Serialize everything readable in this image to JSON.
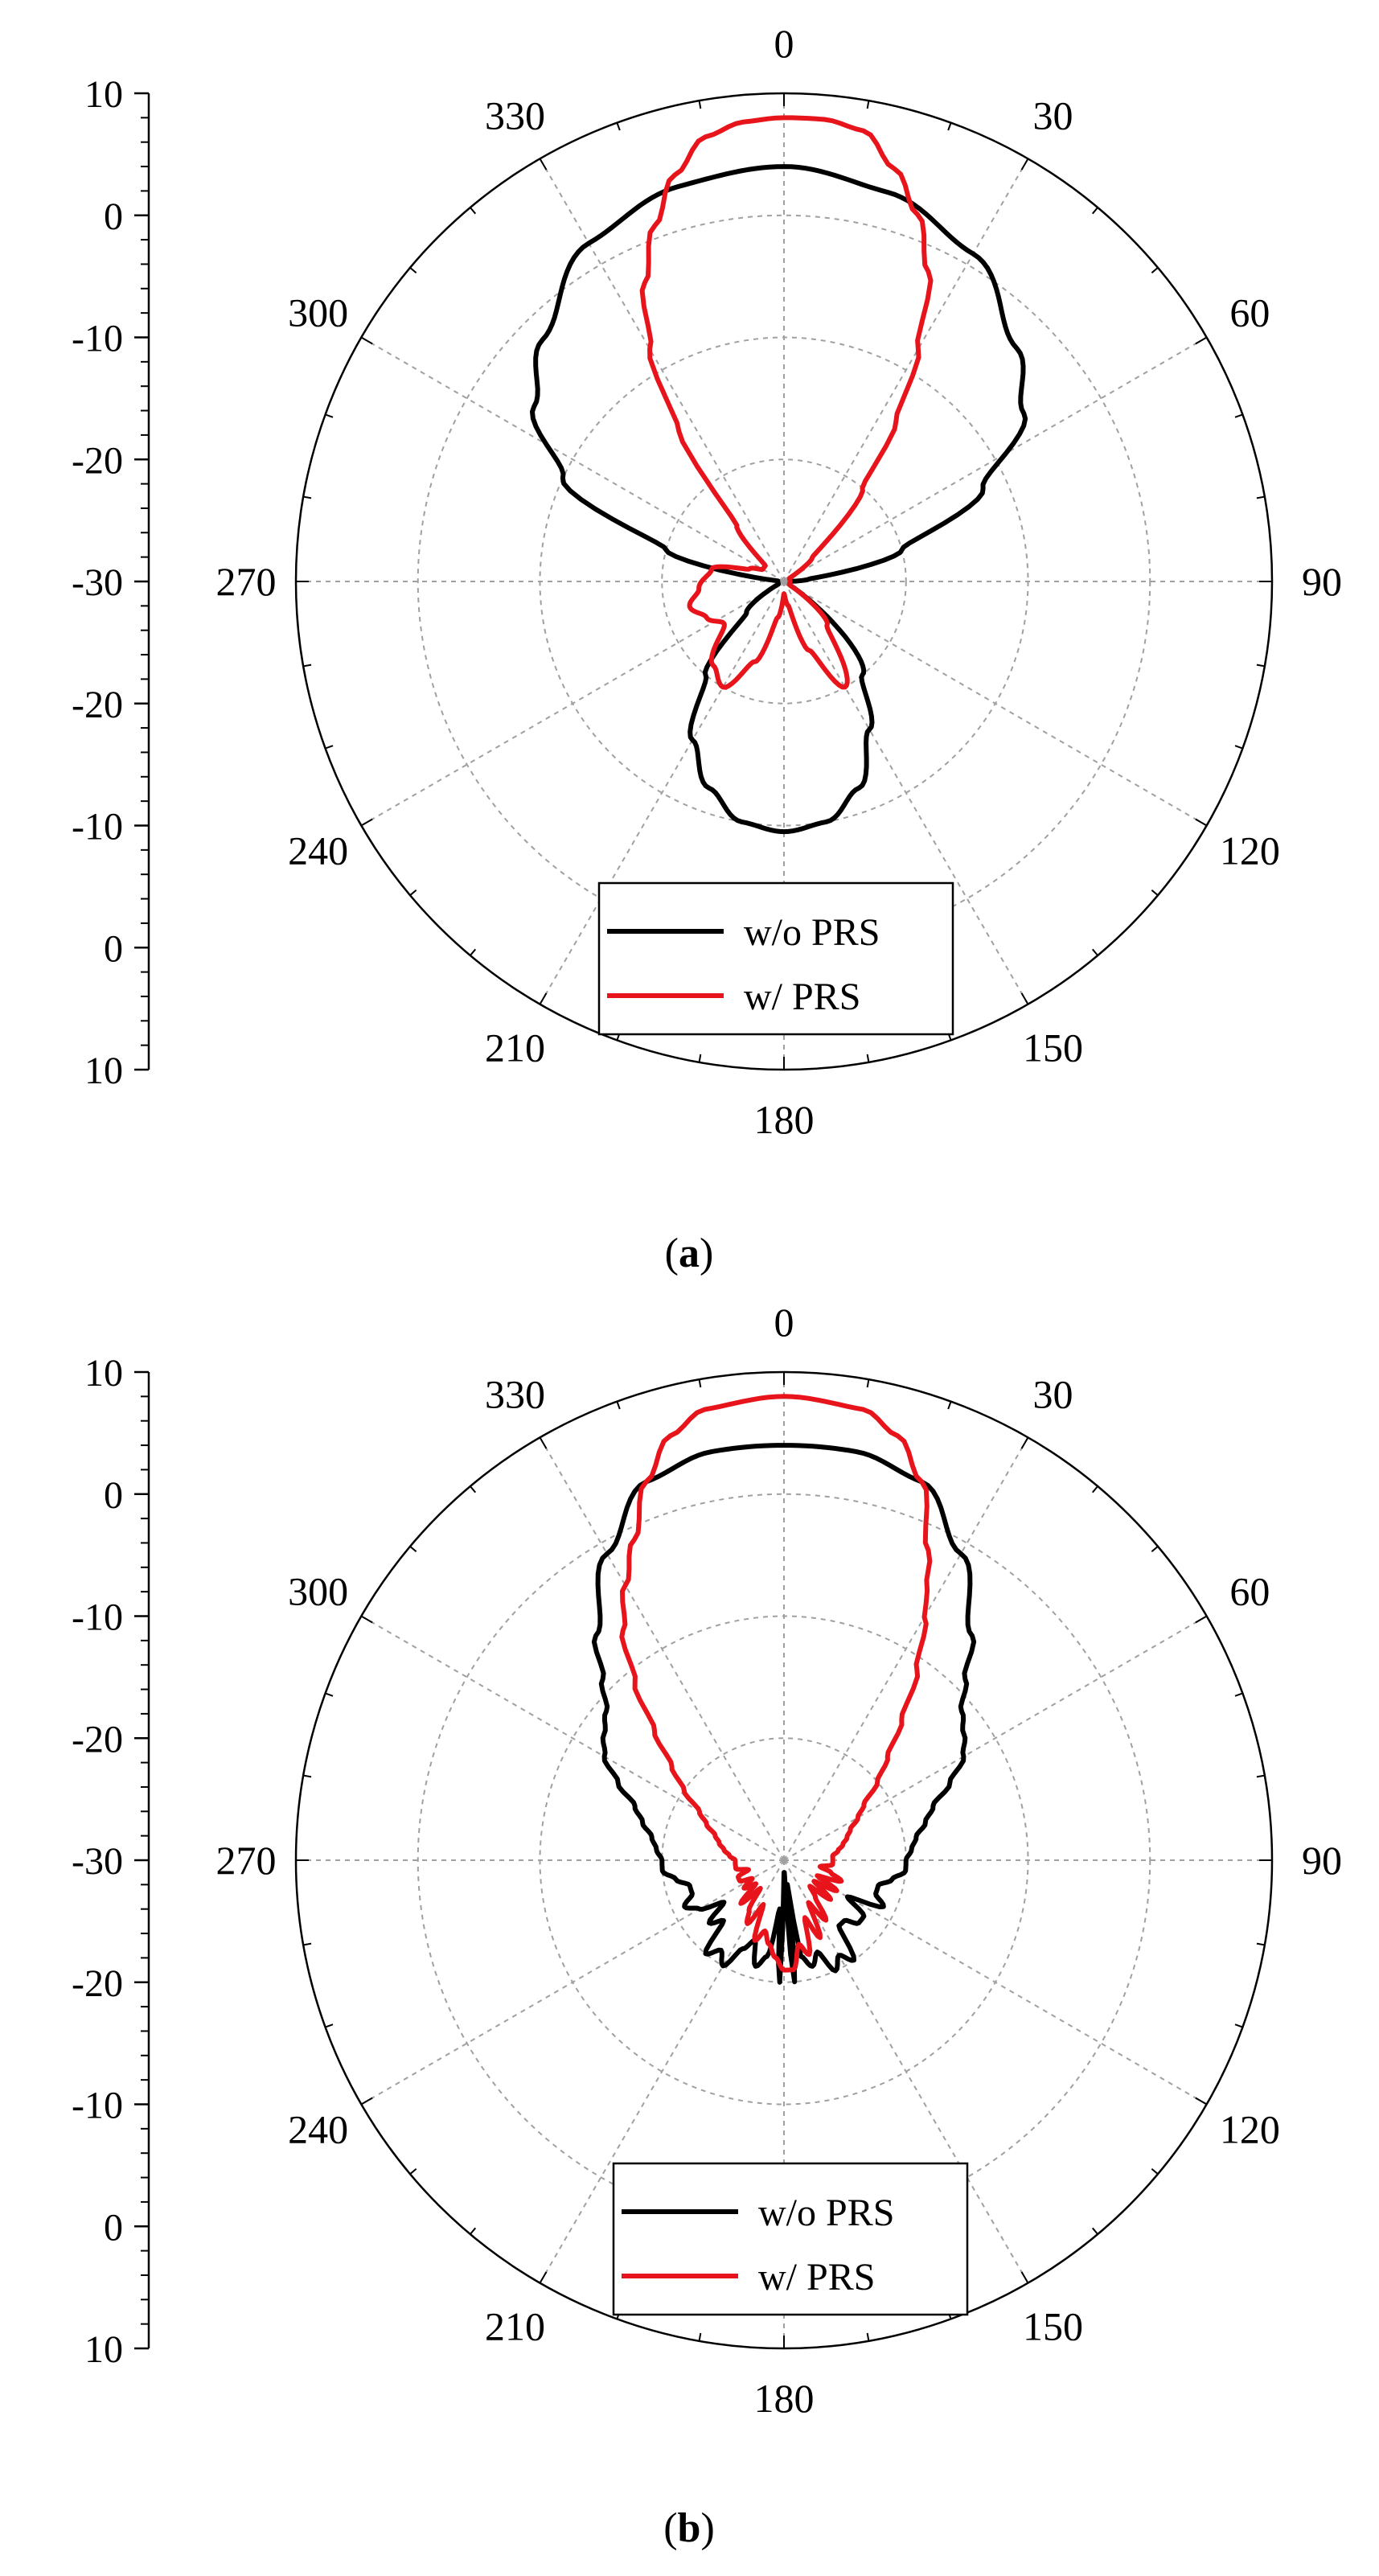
{
  "colors": {
    "series_without_prs": "#000000",
    "series_with_prs": "#e8141b",
    "grid": "#a0a0a0",
    "axis": "#000000"
  },
  "chart_data": [
    {
      "type": "polar-line",
      "caption_letter": "a",
      "radial_range_db": [
        -30,
        10
      ],
      "radial_tick_labels": [
        "10",
        "0",
        "-10",
        "-20",
        "-30",
        "-20",
        "-10",
        "0",
        "10"
      ],
      "angle_labels": [
        "0",
        "30",
        "60",
        "90",
        "120",
        "150",
        "180",
        "210",
        "240",
        "270",
        "300",
        "330"
      ],
      "angle_unit": "deg",
      "grid": true,
      "legend_position": "bottom-center",
      "series": [
        {
          "name": "w/o PRS",
          "color": "#000000",
          "points": [
            [
              0,
              4
            ],
            [
              15,
              3
            ],
            [
              30,
              1
            ],
            [
              45,
              -3
            ],
            [
              55,
              -6
            ],
            [
              65,
              -12
            ],
            [
              75,
              -20
            ],
            [
              85,
              -28
            ],
            [
              90,
              -29.5
            ],
            [
              100,
              -29.5
            ],
            [
              120,
              -29.5
            ],
            [
              140,
              -20
            ],
            [
              150,
              -16
            ],
            [
              160,
              -12
            ],
            [
              170,
              -10
            ],
            [
              180,
              -9.5
            ],
            [
              190,
              -10
            ],
            [
              200,
              -12
            ],
            [
              210,
              -15
            ],
            [
              220,
              -20
            ],
            [
              230,
              -26
            ],
            [
              245,
              -29.5
            ],
            [
              260,
              -29.5
            ],
            [
              275,
              -29.5
            ],
            [
              285,
              -20
            ],
            [
              295,
              -10
            ],
            [
              305,
              -5
            ],
            [
              315,
              -2
            ],
            [
              330,
              2
            ],
            [
              345,
              3.5
            ],
            [
              360,
              4
            ]
          ]
        },
        {
          "name": "w/ PRS",
          "color": "#e8141b",
          "points": [
            [
              0,
              8
            ],
            [
              5,
              8
            ],
            [
              10,
              7.5
            ],
            [
              15,
              5
            ],
            [
              20,
              2
            ],
            [
              25,
              -2
            ],
            [
              30,
              -8
            ],
            [
              35,
              -14
            ],
            [
              40,
              -20
            ],
            [
              50,
              -27
            ],
            [
              60,
              -29.5
            ],
            [
              120,
              -29.5
            ],
            [
              135,
              -25
            ],
            [
              150,
              -20
            ],
            [
              160,
              -24
            ],
            [
              170,
              -28
            ],
            [
              180,
              -29
            ],
            [
              190,
              -27
            ],
            [
              200,
              -23
            ],
            [
              210,
              -20
            ],
            [
              220,
              -21
            ],
            [
              235,
              -24
            ],
            [
              245,
              -23
            ],
            [
              255,
              -22
            ],
            [
              265,
              -23
            ],
            [
              280,
              -24
            ],
            [
              290,
              -27
            ],
            [
              300,
              -28
            ],
            [
              310,
              -28
            ],
            [
              320,
              -24
            ],
            [
              325,
              -15
            ],
            [
              330,
              -8
            ],
            [
              335,
              -3
            ],
            [
              340,
              1
            ],
            [
              345,
              4.5
            ],
            [
              350,
              7
            ],
            [
              355,
              7.8
            ],
            [
              360,
              8
            ]
          ]
        }
      ]
    },
    {
      "type": "polar-line",
      "caption_letter": "b",
      "radial_range_db": [
        -30,
        10
      ],
      "radial_tick_labels": [
        "10",
        "0",
        "-10",
        "-20",
        "-30",
        "-20",
        "-10",
        "0",
        "10"
      ],
      "angle_labels": [
        "0",
        "30",
        "60",
        "90",
        "120",
        "150",
        "180",
        "210",
        "240",
        "270",
        "300",
        "330"
      ],
      "angle_unit": "deg",
      "grid": true,
      "legend_position": "bottom-center",
      "series": [
        {
          "name": "w/o PRS",
          "color": "#000000",
          "points": [
            [
              0,
              4
            ],
            [
              10,
              4
            ],
            [
              20,
              3
            ],
            [
              30,
              -1
            ],
            [
              40,
              -6
            ],
            [
              45,
              -9
            ],
            [
              50,
              -11
            ],
            [
              55,
              -12
            ],
            [
              60,
              -13
            ],
            [
              65,
              -15
            ],
            [
              70,
              -17
            ],
            [
              75,
              -18
            ],
            [
              80,
              -19
            ],
            [
              85,
              -19.5
            ],
            [
              90,
              -20
            ],
            [
              95,
              -20
            ],
            [
              100,
              -21
            ],
            [
              105,
              -22
            ],
            [
              110,
              -22
            ],
            [
              115,
              -21
            ],
            [
              120,
              -24
            ],
            [
              125,
              -22
            ],
            [
              130,
              -22
            ],
            [
              135,
              -23
            ],
            [
              140,
              -23
            ],
            [
              145,
              -20
            ],
            [
              150,
              -21
            ],
            [
              155,
              -20
            ],
            [
              160,
              -22
            ],
            [
              165,
              -21
            ],
            [
              170,
              -22
            ],
            [
              172,
              -28
            ],
            [
              175,
              -20
            ],
            [
              178,
              -29
            ],
            [
              180,
              -29
            ],
            [
              182,
              -20
            ],
            [
              185,
              -26
            ],
            [
              190,
              -22
            ],
            [
              195,
              -21
            ],
            [
              200,
              -23
            ],
            [
              205,
              -22
            ],
            [
              210,
              -20
            ],
            [
              215,
              -21
            ],
            [
              220,
              -20
            ],
            [
              225,
              -23
            ],
            [
              230,
              -22
            ],
            [
              235,
              -24
            ],
            [
              240,
              -22
            ],
            [
              245,
              -21
            ],
            [
              250,
              -22
            ],
            [
              255,
              -22
            ],
            [
              260,
              -21
            ],
            [
              265,
              -20
            ],
            [
              270,
              -20
            ],
            [
              275,
              -19.5
            ],
            [
              280,
              -19
            ],
            [
              285,
              -18
            ],
            [
              290,
              -17
            ],
            [
              295,
              -15
            ],
            [
              300,
              -13
            ],
            [
              305,
              -12
            ],
            [
              310,
              -11
            ],
            [
              315,
              -9
            ],
            [
              320,
              -6
            ],
            [
              330,
              -1
            ],
            [
              340,
              3
            ],
            [
              350,
              4
            ],
            [
              360,
              4
            ]
          ]
        },
        {
          "name": "w/ PRS",
          "color": "#e8141b",
          "points": [
            [
              0,
              8
            ],
            [
              10,
              7.5
            ],
            [
              15,
              6
            ],
            [
              20,
              3
            ],
            [
              25,
              -2
            ],
            [
              28,
              -5
            ],
            [
              30,
              -7
            ],
            [
              35,
              -11
            ],
            [
              40,
              -15
            ],
            [
              45,
              -18
            ],
            [
              50,
              -20
            ],
            [
              55,
              -22
            ],
            [
              60,
              -23
            ],
            [
              65,
              -24
            ],
            [
              70,
              -24.5
            ],
            [
              75,
              -25
            ],
            [
              80,
              -25.5
            ],
            [
              85,
              -26
            ],
            [
              90,
              -26
            ],
            [
              95,
              -26
            ],
            [
              100,
              -27
            ],
            [
              105,
              -26
            ],
            [
              110,
              -25
            ],
            [
              115,
              -27
            ],
            [
              120,
              -25
            ],
            [
              125,
              -27
            ],
            [
              130,
              -25
            ],
            [
              135,
              -27
            ],
            [
              140,
              -26
            ],
            [
              145,
              -24
            ],
            [
              150,
              -26
            ],
            [
              155,
              -23
            ],
            [
              160,
              -25
            ],
            [
              165,
              -22
            ],
            [
              170,
              -23
            ],
            [
              175,
              -21
            ],
            [
              180,
              -21
            ],
            [
              185,
              -22
            ],
            [
              190,
              -23
            ],
            [
              195,
              -24
            ],
            [
              200,
              -23
            ],
            [
              205,
              -26
            ],
            [
              210,
              -24
            ],
            [
              215,
              -25
            ],
            [
              220,
              -27
            ],
            [
              225,
              -25
            ],
            [
              230,
              -27
            ],
            [
              235,
              -26
            ],
            [
              240,
              -27
            ],
            [
              245,
              -26
            ],
            [
              250,
              -26
            ],
            [
              255,
              -27
            ],
            [
              260,
              -26
            ],
            [
              265,
              -26
            ],
            [
              270,
              -26
            ],
            [
              275,
              -25.5
            ],
            [
              280,
              -25
            ],
            [
              285,
              -24.5
            ],
            [
              290,
              -24
            ],
            [
              295,
              -23
            ],
            [
              300,
              -22
            ],
            [
              305,
              -20
            ],
            [
              310,
              -18
            ],
            [
              315,
              -15
            ],
            [
              320,
              -11
            ],
            [
              325,
              -7
            ],
            [
              330,
              -4
            ],
            [
              335,
              -1
            ],
            [
              340,
              3
            ],
            [
              345,
              6
            ],
            [
              350,
              7.5
            ],
            [
              360,
              8
            ]
          ]
        }
      ]
    }
  ]
}
